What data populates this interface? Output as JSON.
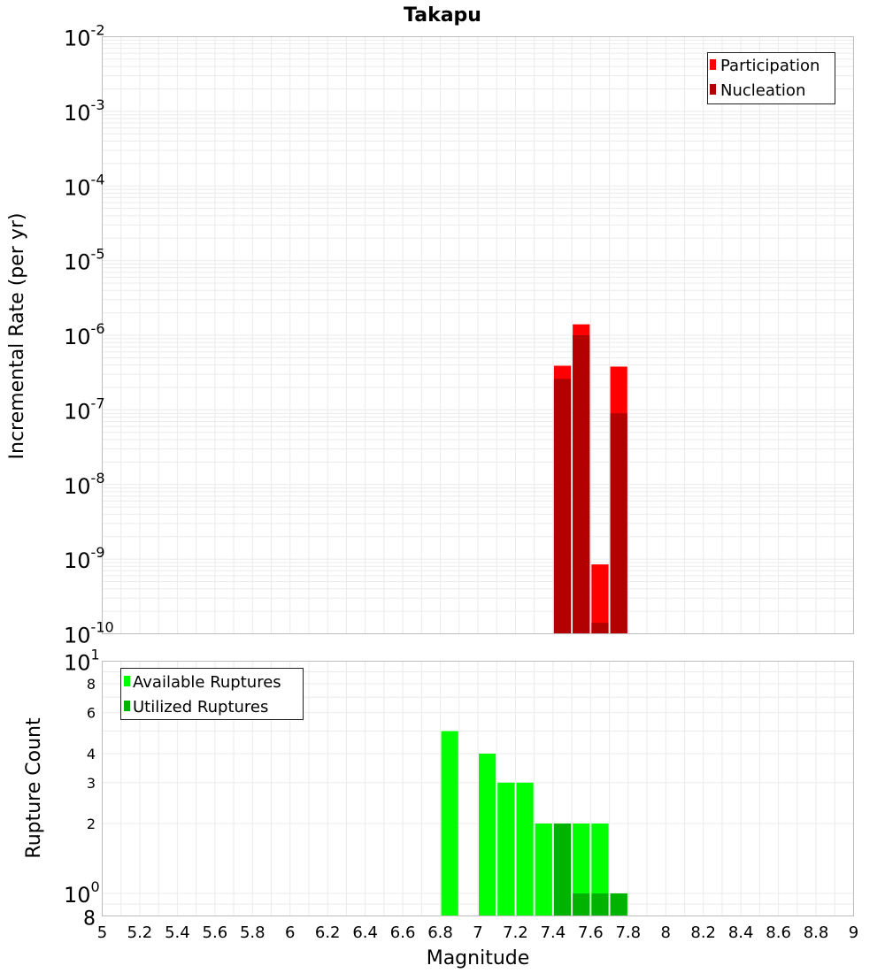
{
  "chart_data": [
    {
      "type": "bar",
      "title": "Takapu",
      "ylabel": "Incremental Rate (per yr)",
      "xlabel": "",
      "xlim": [
        5,
        9
      ],
      "ylim": [
        1e-10,
        0.01
      ],
      "yscale": "log",
      "y_tick_exponents": [
        "-10",
        "-9",
        "-8",
        "-7",
        "-6",
        "-5",
        "-4",
        "-3",
        "-2"
      ],
      "bin_width": 0.1,
      "grid": true,
      "legend_position": "top-right",
      "series": [
        {
          "name": "Participation",
          "color": "#ff0000",
          "x": [
            7.45,
            7.55,
            7.65,
            7.75
          ],
          "values": [
            3.9e-07,
            1.4e-06,
            8.5e-10,
            3.8e-07
          ]
        },
        {
          "name": "Nucleation",
          "color": "#b30000",
          "x": [
            7.45,
            7.55,
            7.65,
            7.75
          ],
          "values": [
            2.6e-07,
            1e-06,
            1.4e-10,
            9e-08
          ]
        }
      ]
    },
    {
      "type": "bar",
      "title": "",
      "ylabel": "Rupture Count",
      "xlabel": "Magnitude",
      "xlim": [
        5,
        9
      ],
      "ylim": [
        0.8,
        10
      ],
      "yscale": "log",
      "x_ticks": [
        "5",
        "5.2",
        "5.4",
        "5.6",
        "5.8",
        "6",
        "6.2",
        "6.4",
        "6.6",
        "6.8",
        "7",
        "7.2",
        "7.4",
        "7.6",
        "7.8",
        "8",
        "8.2",
        "8.4",
        "8.6",
        "8.8",
        "9"
      ],
      "y_minor_ticks": [
        "8",
        "2",
        "3",
        "4",
        "6",
        "8"
      ],
      "y_major_ticks": [
        {
          "base": "10",
          "exp": "0"
        },
        {
          "base": "10",
          "exp": "1"
        }
      ],
      "bin_width": 0.1,
      "grid": true,
      "legend_position": "top-left",
      "series": [
        {
          "name": "Available Ruptures",
          "color": "#00ff00",
          "x": [
            6.85,
            7.05,
            7.15,
            7.25,
            7.35,
            7.45,
            7.55,
            7.65,
            7.75
          ],
          "values": [
            5,
            4,
            3,
            3,
            2,
            2,
            2,
            2,
            1
          ]
        },
        {
          "name": "Utilized Ruptures",
          "color": "#00b300",
          "x": [
            7.45,
            7.55,
            7.65,
            7.75
          ],
          "values": [
            2,
            1,
            1,
            1
          ]
        }
      ]
    }
  ]
}
